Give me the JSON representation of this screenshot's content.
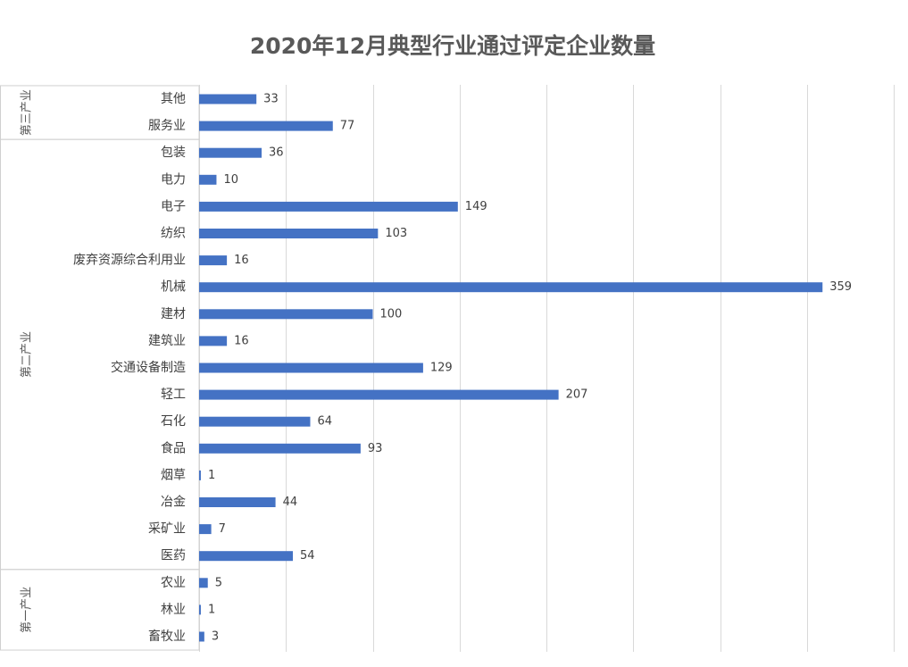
{
  "chart_data": {
    "type": "bar",
    "orientation": "horizontal",
    "title": "2020年12月典型行业通过评定企业数量",
    "categories": [
      "其他",
      "服务业",
      "包装",
      "电力",
      "电子",
      "纺织",
      "废弃资源综合利用业",
      "机械",
      "建材",
      "建筑业",
      "交通设备制造",
      "轻工",
      "石化",
      "食品",
      "烟草",
      "冶金",
      "采矿业",
      "医药",
      "农业",
      "林业",
      "畜牧业"
    ],
    "values": [
      33,
      77,
      36,
      10,
      149,
      103,
      16,
      359,
      100,
      16,
      129,
      207,
      64,
      93,
      1,
      44,
      7,
      54,
      5,
      1,
      3
    ],
    "groups": [
      {
        "label": "第三产业",
        "count": 2
      },
      {
        "label": "第二产业",
        "count": 16
      },
      {
        "label": "第一产业",
        "count": 3
      }
    ],
    "xlim": [
      0,
      400
    ],
    "grid": true,
    "legend": "none",
    "data_labels": true,
    "bar_color": "#4472c4"
  }
}
